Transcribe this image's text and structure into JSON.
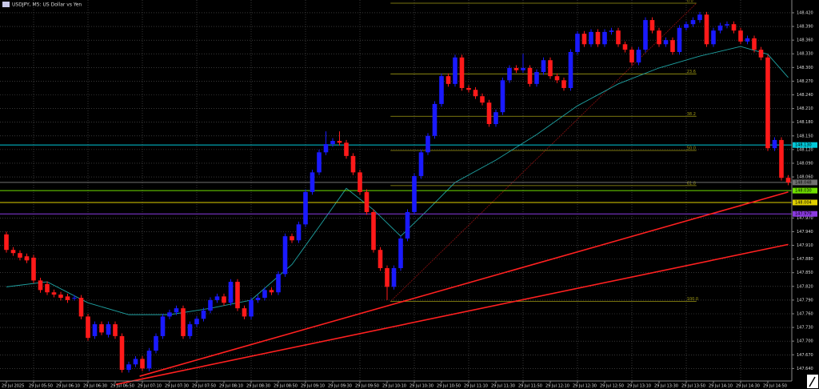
{
  "chart_data": {
    "type": "candlestick",
    "title": "USDJPY, M5:  US Dollar vs Yen",
    "up_color": "#1a1aff",
    "down_color": "#ff1a1a",
    "grid": true,
    "ylim": [
      147.595,
      148.448
    ],
    "yticks": [
      {
        "value": 148.42,
        "label": "148.420"
      },
      {
        "value": 148.39,
        "label": "148.390"
      },
      {
        "value": 148.36,
        "label": "148.360"
      },
      {
        "value": 148.33,
        "label": "148.330"
      },
      {
        "value": 148.3,
        "label": "148.300"
      },
      {
        "value": 148.27,
        "label": "148.270"
      },
      {
        "value": 148.24,
        "label": "148.240"
      },
      {
        "value": 148.21,
        "label": "148.210"
      },
      {
        "value": 148.18,
        "label": "148.180"
      },
      {
        "value": 148.15,
        "label": "148.150"
      },
      {
        "value": 148.12,
        "label": "148.120"
      },
      {
        "value": 148.09,
        "label": "148.090"
      },
      {
        "value": 148.06,
        "label": "148.060"
      },
      {
        "value": 147.97,
        "label": "147.970"
      },
      {
        "value": 147.94,
        "label": "147.940"
      },
      {
        "value": 147.91,
        "label": "147.910"
      },
      {
        "value": 147.88,
        "label": "147.880"
      },
      {
        "value": 147.85,
        "label": "147.850"
      },
      {
        "value": 147.82,
        "label": "147.820"
      },
      {
        "value": 147.79,
        "label": "147.790"
      },
      {
        "value": 147.76,
        "label": "147.760"
      },
      {
        "value": 147.73,
        "label": "147.730"
      },
      {
        "value": 147.7,
        "label": "147.700"
      },
      {
        "value": 147.67,
        "label": "147.670"
      },
      {
        "value": 147.64,
        "label": "147.640"
      }
    ],
    "categories": [
      "29 Jul 2025",
      null,
      null,
      null,
      "29 Jul 05:50",
      null,
      null,
      null,
      "29 Jul 06:10",
      null,
      null,
      null,
      "29 Jul 06:30",
      null,
      null,
      null,
      "29 Jul 06:50",
      null,
      null,
      null,
      "29 Jul 07:10",
      null,
      null,
      null,
      "29 Jul 07:30",
      null,
      null,
      null,
      "29 Jul 07:50",
      null,
      null,
      null,
      "29 Jul 08:10",
      null,
      null,
      null,
      "29 Jul 08:30",
      null,
      null,
      null,
      "29 Jul 08:50",
      null,
      null,
      null,
      "29 Jul 09:10",
      null,
      null,
      null,
      "29 Jul 09:30",
      null,
      null,
      null,
      "29 Jul 09:50",
      null,
      null,
      null,
      "29 Jul 10:10",
      null,
      null,
      null,
      "29 Jul 10:30",
      null,
      null,
      null,
      "29 Jul 10:50",
      null,
      null,
      null,
      "29 Jul 11:10",
      null,
      null,
      null,
      "29 Jul 11:30",
      null,
      null,
      null,
      "29 Jul 11:50",
      null,
      null,
      null,
      "29 Jul 12:10",
      null,
      null,
      null,
      "29 Jul 12:30",
      null,
      null,
      null,
      "29 Jul 12:50",
      null,
      null,
      null,
      "29 Jul 13:10",
      null,
      null,
      null,
      "29 Jul 13:30",
      null,
      null,
      null,
      "29 Jul 13:50",
      null,
      null,
      null,
      "29 Jul 14:10",
      null,
      null,
      null,
      "29 Jul 14:30",
      null,
      null,
      null,
      "29 Jul 14:50",
      null,
      null,
      null
    ],
    "ohlc": [
      [
        147.934,
        147.94,
        147.894,
        147.9
      ],
      [
        147.9,
        147.906,
        147.887,
        147.893
      ],
      [
        147.893,
        147.899,
        147.877,
        147.883
      ],
      [
        147.886,
        147.892,
        147.871,
        147.877
      ],
      [
        147.883,
        147.889,
        147.827,
        147.833
      ],
      [
        147.833,
        147.839,
        147.806,
        147.812
      ],
      [
        147.825,
        147.831,
        147.801,
        147.807
      ],
      [
        147.807,
        147.813,
        147.796,
        147.802
      ],
      [
        147.802,
        147.808,
        147.789,
        147.795
      ],
      [
        147.798,
        147.804,
        147.784,
        147.79
      ],
      [
        147.795,
        147.801,
        147.789,
        147.795
      ],
      [
        147.795,
        147.801,
        147.748,
        147.754
      ],
      [
        147.754,
        147.76,
        147.701,
        147.707
      ],
      [
        147.711,
        147.743,
        147.705,
        147.737
      ],
      [
        147.737,
        147.743,
        147.713,
        147.719
      ],
      [
        147.714,
        147.743,
        147.708,
        147.737
      ],
      [
        147.737,
        147.743,
        147.705,
        147.711
      ],
      [
        147.711,
        147.717,
        147.631,
        147.637
      ],
      [
        147.637,
        147.655,
        147.631,
        147.649
      ],
      [
        147.649,
        147.667,
        147.643,
        147.661
      ],
      [
        147.661,
        147.667,
        147.634,
        147.64
      ],
      [
        147.64,
        147.685,
        147.634,
        147.679
      ],
      [
        147.679,
        147.717,
        147.673,
        147.711
      ],
      [
        147.711,
        147.76,
        147.705,
        147.754
      ],
      [
        147.754,
        147.769,
        147.748,
        147.763
      ],
      [
        147.763,
        147.778,
        147.757,
        147.772
      ],
      [
        147.772,
        147.778,
        147.705,
        147.711
      ],
      [
        147.711,
        147.743,
        147.705,
        147.737
      ],
      [
        147.737,
        147.755,
        147.731,
        147.749
      ],
      [
        147.749,
        147.773,
        147.743,
        147.767
      ],
      [
        147.767,
        147.796,
        147.761,
        147.79
      ],
      [
        147.79,
        147.804,
        147.784,
        147.798
      ],
      [
        147.798,
        147.804,
        147.778,
        147.784
      ],
      [
        147.784,
        147.836,
        147.778,
        147.83
      ],
      [
        147.83,
        147.836,
        147.766,
        147.772
      ],
      [
        147.772,
        147.778,
        147.748,
        147.754
      ],
      [
        147.754,
        147.796,
        147.748,
        147.79
      ],
      [
        147.79,
        147.801,
        147.784,
        147.795
      ],
      [
        147.795,
        147.818,
        147.789,
        147.812
      ],
      [
        147.812,
        147.818,
        147.801,
        147.807
      ],
      [
        147.807,
        147.853,
        147.801,
        147.847
      ],
      [
        147.847,
        147.936,
        147.841,
        147.93
      ],
      [
        147.93,
        147.936,
        147.915,
        147.921
      ],
      [
        147.921,
        147.962,
        147.915,
        147.956
      ],
      [
        147.956,
        148.033,
        147.95,
        148.027
      ],
      [
        148.027,
        148.076,
        148.021,
        148.07
      ],
      [
        148.07,
        148.12,
        148.064,
        148.114
      ],
      [
        148.114,
        148.16,
        148.108,
        148.132
      ],
      [
        148.132,
        148.145,
        148.126,
        148.139
      ],
      [
        148.139,
        148.16,
        148.129,
        148.135
      ],
      [
        148.135,
        148.141,
        148.1,
        148.106
      ],
      [
        148.106,
        148.112,
        148.064,
        148.07
      ],
      [
        148.07,
        148.076,
        148.021,
        148.027
      ],
      [
        148.027,
        148.033,
        147.977,
        147.983
      ],
      [
        147.983,
        147.989,
        147.894,
        147.9
      ],
      [
        147.9,
        147.906,
        147.854,
        147.86
      ],
      [
        147.86,
        147.866,
        147.79,
        147.819
      ],
      [
        147.819,
        147.866,
        147.813,
        147.86
      ],
      [
        147.86,
        147.931,
        147.854,
        147.925
      ],
      [
        147.925,
        147.989,
        147.919,
        147.983
      ],
      [
        147.983,
        148.068,
        147.977,
        148.062
      ],
      [
        148.062,
        148.12,
        148.056,
        148.114
      ],
      [
        148.114,
        148.156,
        148.108,
        148.15
      ],
      [
        148.15,
        148.226,
        148.144,
        148.22
      ],
      [
        148.22,
        148.287,
        148.214,
        148.281
      ],
      [
        148.281,
        148.287,
        148.258,
        148.264
      ],
      [
        148.264,
        148.328,
        148.258,
        148.322
      ],
      [
        148.322,
        148.328,
        148.249,
        148.255
      ],
      [
        148.255,
        148.261,
        148.245,
        148.251
      ],
      [
        148.251,
        148.257,
        148.231,
        148.237
      ],
      [
        148.237,
        148.243,
        148.217,
        148.223
      ],
      [
        148.223,
        148.229,
        148.17,
        148.176
      ],
      [
        148.176,
        148.208,
        148.17,
        148.202
      ],
      [
        148.202,
        148.278,
        148.196,
        148.272
      ],
      [
        148.272,
        148.305,
        148.266,
        148.299
      ],
      [
        148.299,
        148.305,
        148.288,
        148.294
      ],
      [
        148.294,
        148.33,
        148.288,
        148.299
      ],
      [
        148.299,
        148.305,
        148.258,
        148.264
      ],
      [
        148.264,
        148.296,
        148.258,
        148.29
      ],
      [
        148.29,
        148.322,
        148.284,
        148.316
      ],
      [
        148.316,
        148.322,
        148.275,
        148.281
      ],
      [
        148.281,
        148.287,
        148.266,
        148.272
      ],
      [
        148.272,
        148.278,
        148.249,
        148.255
      ],
      [
        148.255,
        148.34,
        148.249,
        148.334
      ],
      [
        148.334,
        148.38,
        148.328,
        148.374
      ],
      [
        148.374,
        148.38,
        148.345,
        148.351
      ],
      [
        148.351,
        148.384,
        148.345,
        148.378
      ],
      [
        148.378,
        148.384,
        148.345,
        148.351
      ],
      [
        148.351,
        148.384,
        148.345,
        148.378
      ],
      [
        148.378,
        148.387,
        148.372,
        148.381
      ],
      [
        148.381,
        148.387,
        148.345,
        148.351
      ],
      [
        148.351,
        148.357,
        148.333,
        148.339
      ],
      [
        148.339,
        148.345,
        148.305,
        148.311
      ],
      [
        148.311,
        148.345,
        148.305,
        148.339
      ],
      [
        148.339,
        148.41,
        148.333,
        148.404
      ],
      [
        148.404,
        148.41,
        148.375,
        148.381
      ],
      [
        148.381,
        148.387,
        148.345,
        148.351
      ],
      [
        148.351,
        148.366,
        148.345,
        148.36
      ],
      [
        148.36,
        148.366,
        148.328,
        148.334
      ],
      [
        148.334,
        148.393,
        148.328,
        148.387
      ],
      [
        148.387,
        148.401,
        148.381,
        148.395
      ],
      [
        148.395,
        148.41,
        148.389,
        148.404
      ],
      [
        148.404,
        148.422,
        148.398,
        148.416
      ],
      [
        148.416,
        148.422,
        148.345,
        148.351
      ],
      [
        148.351,
        148.387,
        148.345,
        148.381
      ],
      [
        148.381,
        148.398,
        148.375,
        148.392
      ],
      [
        148.392,
        148.401,
        148.386,
        148.395
      ],
      [
        148.395,
        148.401,
        148.375,
        148.381
      ],
      [
        148.381,
        148.387,
        148.351,
        148.357
      ],
      [
        148.357,
        148.37,
        148.351,
        148.364
      ],
      [
        148.364,
        148.37,
        148.333,
        148.339
      ],
      [
        148.339,
        148.345,
        148.316,
        148.322
      ],
      [
        148.322,
        148.328,
        148.117,
        148.123
      ],
      [
        148.123,
        148.147,
        148.117,
        148.141
      ],
      [
        148.141,
        148.147,
        148.052,
        148.058
      ],
      [
        148.058,
        148.064,
        148.042,
        148.048
      ]
    ],
    "ma": {
      "color": "#1fa3a3",
      "index": [
        0,
        6,
        12,
        18,
        24,
        30,
        36,
        42,
        46,
        50,
        54,
        58,
        62,
        66,
        72,
        78,
        84,
        90,
        96,
        102,
        108,
        112,
        115
      ],
      "values": [
        147.819,
        147.83,
        147.784,
        147.758,
        147.758,
        147.772,
        147.79,
        147.868,
        147.951,
        148.035,
        147.988,
        147.93,
        147.988,
        148.048,
        148.097,
        148.153,
        148.216,
        148.264,
        148.299,
        148.325,
        148.346,
        148.329,
        148.278
      ]
    },
    "fibonacci": {
      "color": "#a09a14",
      "start_index": 56.5,
      "end_index": 101.5,
      "levels": [
        {
          "label": "0.0",
          "price": 148.441
        },
        {
          "label": "23.6",
          "price": 148.286
        },
        {
          "label": "38.2",
          "price": 148.193
        },
        {
          "label": "50.0",
          "price": 148.118
        },
        {
          "label": "61.8",
          "price": 148.041
        },
        {
          "label": "100.0",
          "price": 147.787
        }
      ]
    },
    "trendlines": [
      {
        "color": "#ff2020",
        "points": [
          [
            19.6,
            147.623
          ],
          [
            115,
            148.027
          ]
        ]
      },
      {
        "color": "#ff2020",
        "points": [
          [
            16.1,
            147.605
          ],
          [
            115,
            147.912
          ]
        ]
      }
    ],
    "price_levels": [
      {
        "value": 148.13,
        "label": "148.130",
        "color": "#00c8d8"
      },
      {
        "value": 148.048,
        "label": "148.048",
        "color": "#707070"
      },
      {
        "value": 148.03,
        "label": "148.030",
        "color": "#70e000"
      },
      {
        "value": 148.004,
        "label": "148.004",
        "color": "#e0d000"
      },
      {
        "value": 147.979,
        "label": "147.979",
        "color": "#8a3adf"
      }
    ]
  }
}
